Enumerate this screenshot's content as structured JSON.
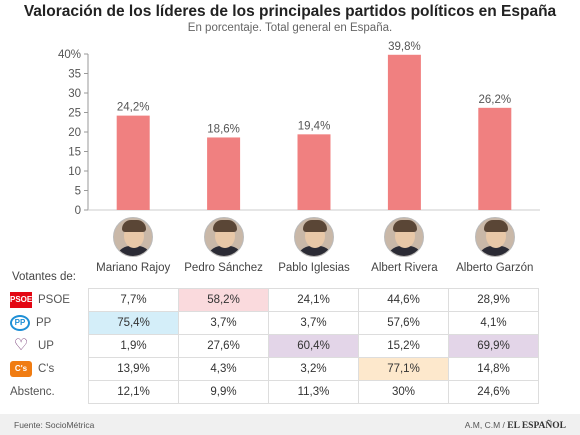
{
  "chart_data": {
    "type": "bar",
    "title": "Valoración de los líderes de los principales partidos políticos en España",
    "subtitle": "En porcentaje. Total general en España.",
    "categories": [
      "Mariano Rajoy",
      "Pedro Sánchez",
      "Pablo Iglesias",
      "Albert Rivera",
      "Alberto Garzón"
    ],
    "values": [
      24.2,
      18.6,
      19.4,
      39.8,
      26.2
    ],
    "data_labels": [
      "24,2%",
      "18,6%",
      "19,4%",
      "39,8%",
      "26,2%"
    ],
    "ylim": [
      0,
      40
    ],
    "yticks": [
      0,
      5,
      10,
      15,
      20,
      25,
      30,
      35,
      40
    ],
    "ytick_labels": [
      "0",
      "5",
      "10",
      "15",
      "20",
      "25",
      "30",
      "35",
      "40%"
    ],
    "grid": false,
    "bar_color": "#f08080"
  },
  "table": {
    "header": "Votantes de:",
    "rows": [
      {
        "party": "PSOE",
        "logo": "psoe-logo",
        "logo_text": "PSOE",
        "cells": [
          "7,7%",
          "58,2%",
          "24,1%",
          "44,6%",
          "28,9%"
        ],
        "highlight": 1,
        "highlight_color": "#fadadd"
      },
      {
        "party": "PP",
        "logo": "pp-logo",
        "logo_text": "PP",
        "cells": [
          "75,4%",
          "3,7%",
          "3,7%",
          "57,6%",
          "4,1%"
        ],
        "highlight": 0,
        "highlight_color": "#d4eef9"
      },
      {
        "party": "UP",
        "logo": "up-logo",
        "logo_text": "♡",
        "cells": [
          "1,9%",
          "27,6%",
          "60,4%",
          "15,2%",
          "69,9%"
        ],
        "highlight": [
          2,
          4
        ],
        "highlight_color": "#e3d5e8"
      },
      {
        "party": "C's",
        "logo": "cs-logo",
        "logo_text": "C's",
        "cells": [
          "13,9%",
          "4,3%",
          "3,2%",
          "77,1%",
          "14,8%"
        ],
        "highlight": 3,
        "highlight_color": "#fde8cc"
      },
      {
        "party": "Abstenc.",
        "logo": "",
        "logo_text": "",
        "cells": [
          "12,1%",
          "9,9%",
          "11,3%",
          "30%",
          "24,6%"
        ],
        "highlight": -1,
        "highlight_color": ""
      }
    ]
  },
  "footer": {
    "source": "Fuente: SocioMétrica",
    "credit_prefix": "A.M, C.M /",
    "brand": "EL ESPAÑOL"
  }
}
